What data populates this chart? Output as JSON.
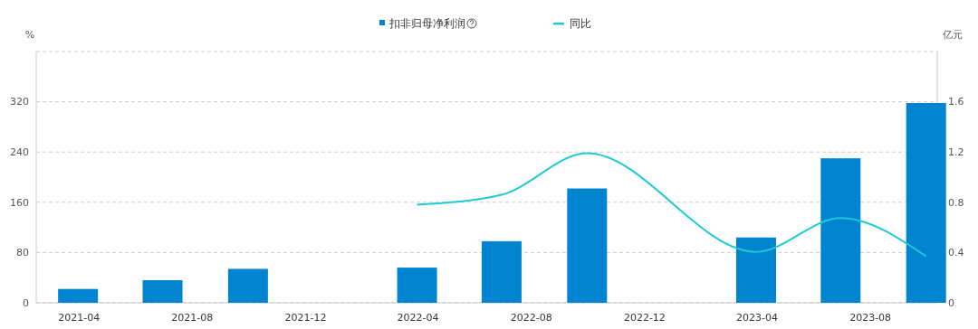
{
  "chart_data": {
    "type": "bar",
    "ylabel": "%",
    "y2label": "亿元",
    "x": [
      "2021-03-31",
      "2021-06-30",
      "2021-09-30",
      "2022-03-31",
      "2022-06-30",
      "2022-09-30",
      "2023-03-31",
      "2023-06-30",
      "2023-09-30"
    ],
    "xlim": [
      "2021-02-14",
      "2023-10-12"
    ],
    "xticks": [
      {
        "value": "2021-04-01",
        "label": "2021-04"
      },
      {
        "value": "2021-08-01",
        "label": "2021-08"
      },
      {
        "value": "2021-12-01",
        "label": "2021-12"
      },
      {
        "value": "2022-04-01",
        "label": "2022-04"
      },
      {
        "value": "2022-08-01",
        "label": "2022-08"
      },
      {
        "value": "2022-12-01",
        "label": "2022-12"
      },
      {
        "value": "2023-04-01",
        "label": "2023-04"
      },
      {
        "value": "2023-08-01",
        "label": "2023-08"
      }
    ],
    "series": [
      {
        "name": "扣非归母净利润",
        "axis": "y2",
        "color": "#0084d0",
        "values": [
          0.11,
          0.18,
          0.27,
          0.28,
          0.49,
          0.91,
          0.52,
          1.15,
          1.59
        ]
      },
      {
        "name": "同比",
        "type": "line",
        "axis": "y",
        "color": "#1ecad3",
        "x": [
          "2022-03-31",
          "2022-06-30",
          "2022-09-30",
          "2023-03-31",
          "2023-06-30",
          "2023-09-30"
        ],
        "values": [
          156,
          172,
          238,
          81,
          135,
          74
        ]
      }
    ],
    "ylim": [
      0,
      400
    ],
    "yticks": [
      0,
      80,
      160,
      240,
      320,
      {
        "value": 400,
        "label": null
      }
    ],
    "y2lim": [
      0,
      2
    ],
    "y2ticks": [
      0,
      0.4,
      0.8,
      1.2,
      1.6
    ],
    "grid": "y",
    "legend": "top",
    "marker": "none",
    "line_style": "solid"
  }
}
